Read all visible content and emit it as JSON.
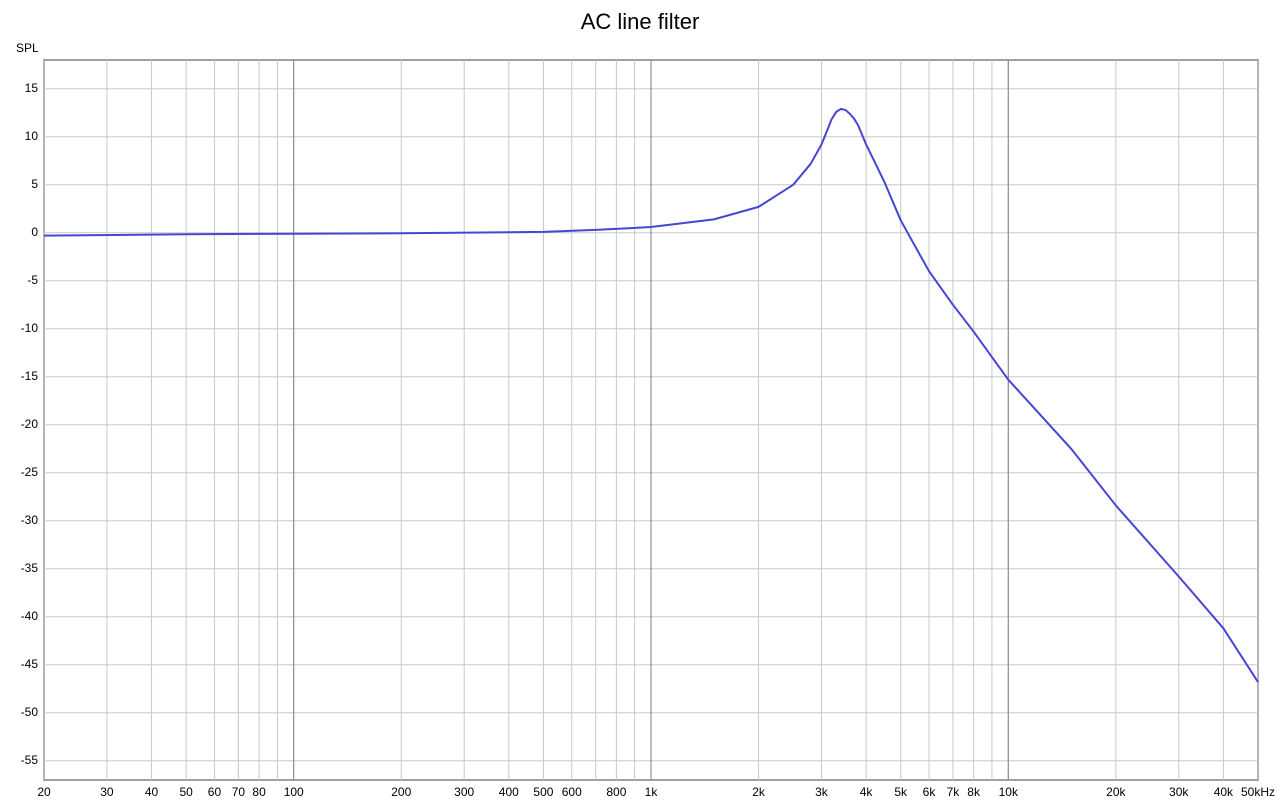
{
  "chart_data": {
    "type": "line",
    "title": "AC line filter",
    "y_label": "SPL",
    "xscale": "log",
    "x": [
      20,
      50,
      100,
      200,
      500,
      700,
      1000,
      1500,
      2000,
      2500,
      2800,
      3000,
      3100,
      3200,
      3300,
      3400,
      3500,
      3600,
      3700,
      3800,
      4000,
      4200,
      4500,
      5000,
      6000,
      7000,
      8000,
      10000,
      15000,
      20000,
      30000,
      40000,
      50000
    ],
    "values": [
      -0.3,
      -0.15,
      -0.1,
      -0.05,
      0.1,
      0.3,
      0.6,
      1.4,
      2.7,
      5.0,
      7.2,
      9.2,
      10.5,
      11.8,
      12.6,
      12.9,
      12.8,
      12.4,
      11.9,
      11.2,
      9.2,
      7.6,
      5.3,
      1.3,
      -4.0,
      -7.5,
      -10.3,
      -15.3,
      -22.5,
      -28.4,
      -35.8,
      -41.2,
      -46.8
    ],
    "color": "#4646d2",
    "xlim": [
      20,
      50000
    ],
    "ylim": [
      -57,
      18
    ],
    "xticks": [
      20,
      30,
      40,
      50,
      60,
      70,
      80,
      100,
      200,
      300,
      400,
      500,
      600,
      800,
      {
        "value": 1000,
        "label": "1k"
      },
      {
        "value": 2000,
        "label": "2k"
      },
      {
        "value": 3000,
        "label": "3k"
      },
      {
        "value": 4000,
        "label": "4k"
      },
      {
        "value": 5000,
        "label": "5k"
      },
      {
        "value": 6000,
        "label": "6k"
      },
      {
        "value": 7000,
        "label": "7k"
      },
      {
        "value": 8000,
        "label": "8k"
      },
      {
        "value": 10000,
        "label": "10k"
      },
      {
        "value": 20000,
        "label": "20k"
      },
      {
        "value": 30000,
        "label": "30k"
      },
      {
        "value": 40000,
        "label": "40k"
      },
      {
        "value": 50000,
        "label": "50kHz"
      }
    ],
    "xgrid_unlabeled": [
      90,
      700,
      900,
      9000
    ],
    "xgrid_major": [
      100,
      1000,
      10000
    ],
    "yticks": [
      -55,
      -50,
      -45,
      -40,
      -35,
      -30,
      -25,
      -20,
      -15,
      -10,
      -5,
      0,
      5,
      10,
      15
    ],
    "grid": true
  }
}
